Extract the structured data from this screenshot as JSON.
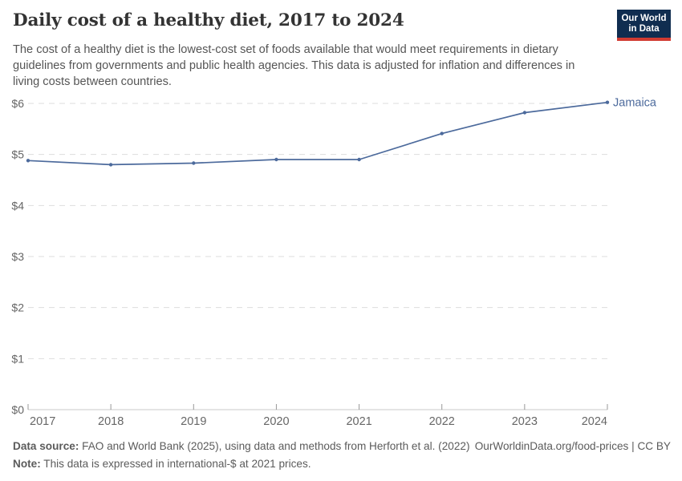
{
  "header": {
    "title": "Daily cost of a healthy diet, 2017 to 2024",
    "subtitle": "The cost of a healthy diet is the lowest-cost set of foods available that would meet requirements in dietary guidelines from governments and public health agencies. This data is adjusted for inflation and differences in living costs between countries."
  },
  "logo": {
    "line1": "Our World",
    "line2": "in Data",
    "background_color": "#102d50",
    "accent_color": "#d13b32"
  },
  "footer": {
    "data_source_label": "Data source:",
    "data_source_text": " FAO and World Bank (2025), using data and methods from Herforth et al. (2022)",
    "note_label": "Note:",
    "note_text": " This data is expressed in international-$ at 2021 prices.",
    "url_text": "OurWorldinData.org/food-prices | CC BY"
  },
  "chart_data": {
    "type": "line",
    "title": "Daily cost of a healthy diet, 2017 to 2024",
    "x": [
      2017,
      2018,
      2019,
      2020,
      2021,
      2022,
      2023,
      2024
    ],
    "series": [
      {
        "name": "Jamaica",
        "color": "#4c6a9c",
        "values": [
          4.88,
          4.8,
          4.83,
          4.9,
          4.9,
          5.41,
          5.82,
          6.02
        ]
      }
    ],
    "yticks": [
      0,
      1,
      2,
      3,
      4,
      5,
      6
    ],
    "ytick_prefix": "$",
    "ylim": [
      0,
      6
    ],
    "xlabel": "",
    "ylabel": "",
    "grid": "dashed horizontal gridlines",
    "legend_position": "end-of-line label",
    "colors": {
      "gridline": "#dddddd",
      "axis_line": "#c8c8c8",
      "tick_mark": "#989898",
      "tick_label": "#666666"
    }
  }
}
